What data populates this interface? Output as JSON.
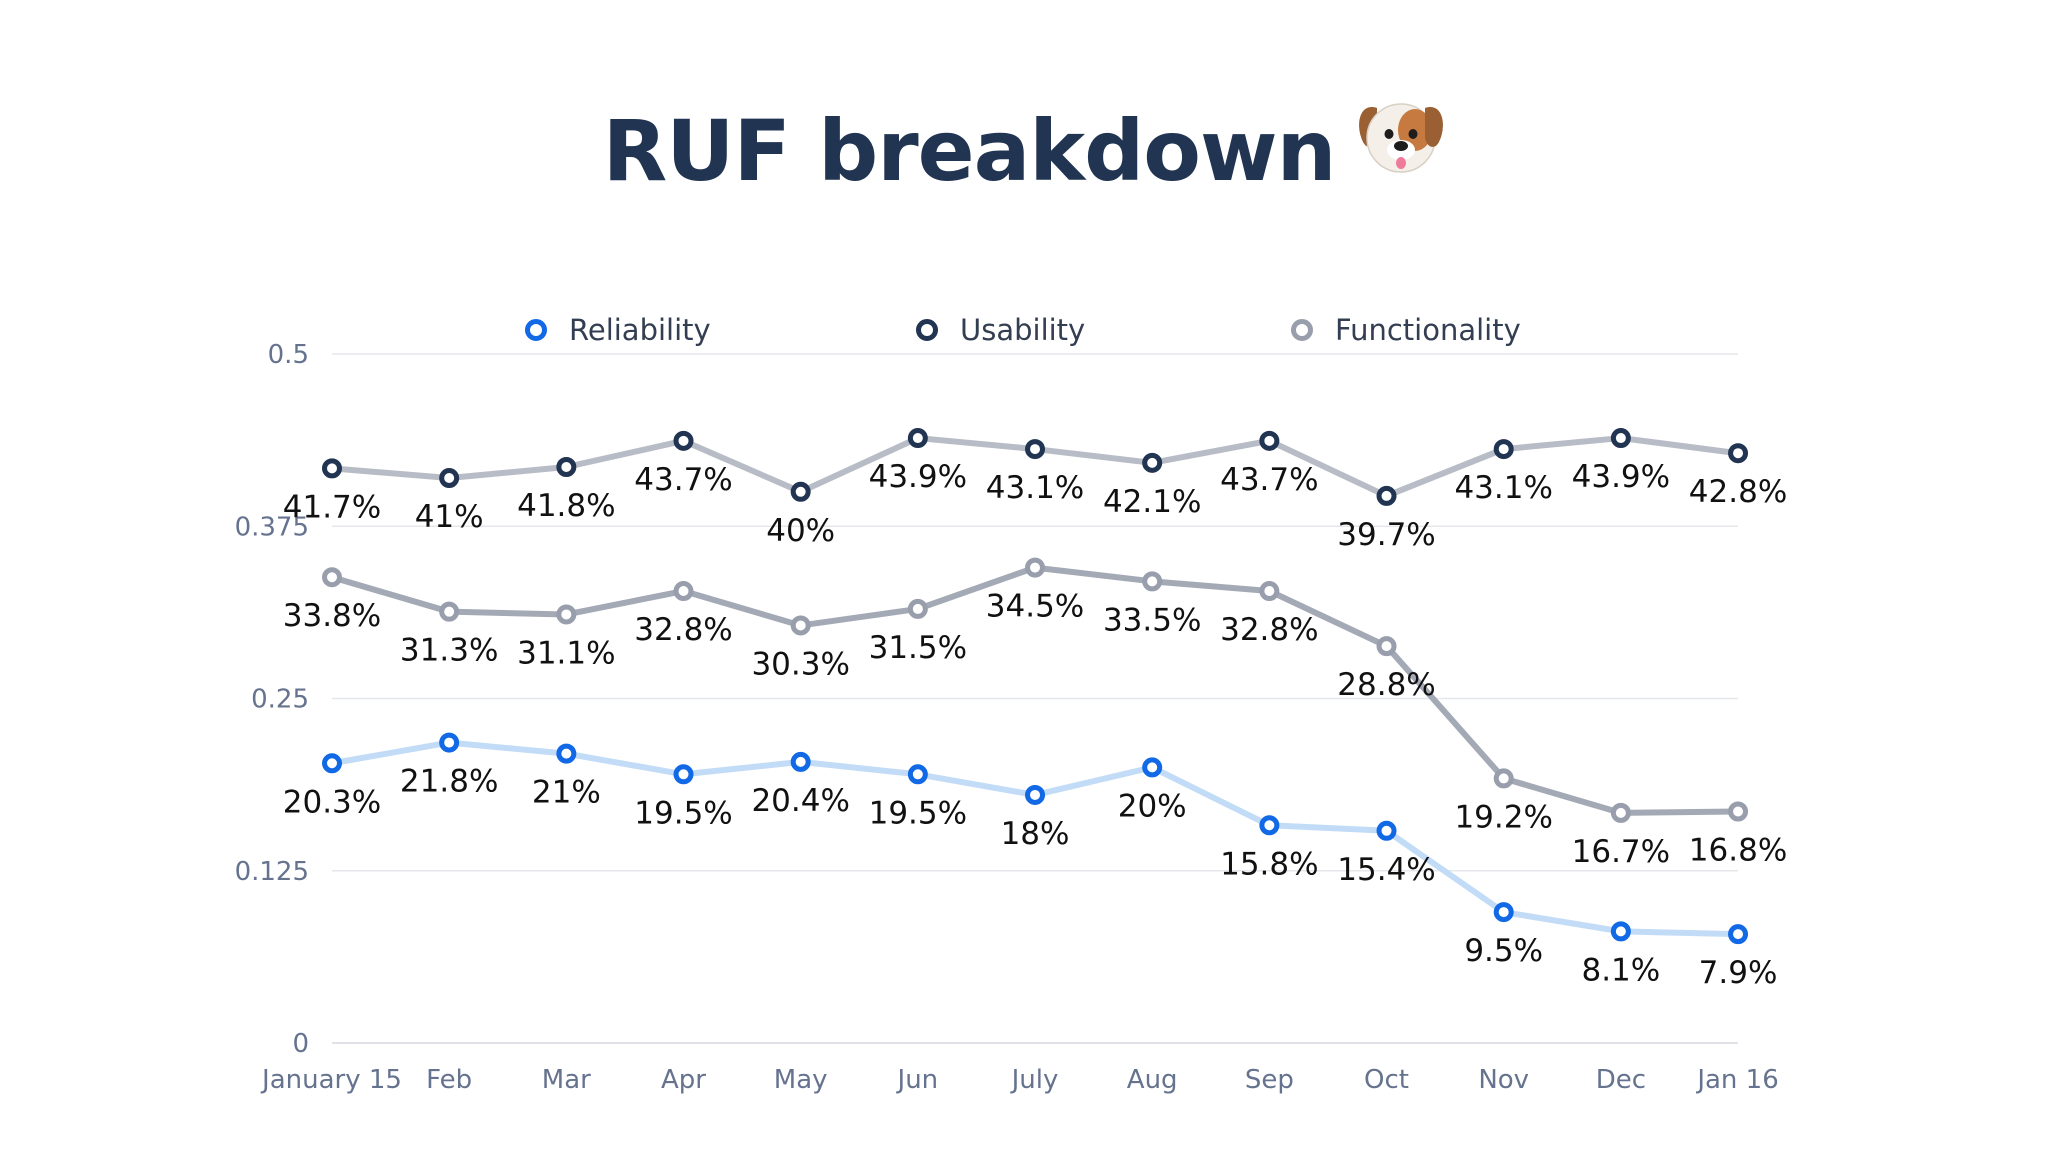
{
  "title": "RUF breakdown",
  "title_emoji": "dog-face",
  "legend": {
    "items": [
      "Reliability",
      "Usability",
      "Functionality"
    ]
  },
  "chart_data": {
    "type": "line",
    "title": "RUF breakdown",
    "categories": [
      "January 15",
      "Feb",
      "Mar",
      "Apr",
      "May",
      "Jun",
      "July",
      "Aug",
      "Sep",
      "Oct",
      "Nov",
      "Dec",
      "Jan 16"
    ],
    "ylim": [
      0,
      0.5
    ],
    "yticks": [
      "0",
      "0.125",
      "0.25",
      "0.375",
      "0.5"
    ],
    "grid": true,
    "legend_position": "top",
    "series": [
      {
        "name": "Reliability",
        "values": [
          0.203,
          0.218,
          0.21,
          0.195,
          0.204,
          0.195,
          0.18,
          0.2,
          0.158,
          0.154,
          0.095,
          0.081,
          0.079
        ],
        "labels": [
          "20.3%",
          "21.8%",
          "21%",
          "19.5%",
          "20.4%",
          "19.5%",
          "18%",
          "20%",
          "15.8%",
          "15.4%",
          "9.5%",
          "8.1%",
          "7.9%"
        ],
        "line_color": "#c2dcf7",
        "marker_color": "#1269e6"
      },
      {
        "name": "Usability",
        "values": [
          0.417,
          0.41,
          0.418,
          0.437,
          0.4,
          0.439,
          0.431,
          0.421,
          0.437,
          0.397,
          0.431,
          0.439,
          0.428
        ],
        "labels": [
          "41.7%",
          "41%",
          "41.8%",
          "43.7%",
          "40%",
          "43.9%",
          "43.1%",
          "42.1%",
          "43.7%",
          "39.7%",
          "43.1%",
          "43.9%",
          "42.8%"
        ],
        "line_color": "#b8bcc6",
        "marker_color": "#213452"
      },
      {
        "name": "Functionality",
        "values": [
          0.338,
          0.313,
          0.311,
          0.328,
          0.303,
          0.315,
          0.345,
          0.335,
          0.328,
          0.288,
          0.192,
          0.167,
          0.168
        ],
        "labels": [
          "33.8%",
          "31.3%",
          "31.1%",
          "32.8%",
          "30.3%",
          "31.5%",
          "34.5%",
          "33.5%",
          "32.8%",
          "28.8%",
          "19.2%",
          "16.7%",
          "16.8%"
        ],
        "line_color": "#a4a9b6",
        "marker_color": "#989eac"
      }
    ]
  }
}
